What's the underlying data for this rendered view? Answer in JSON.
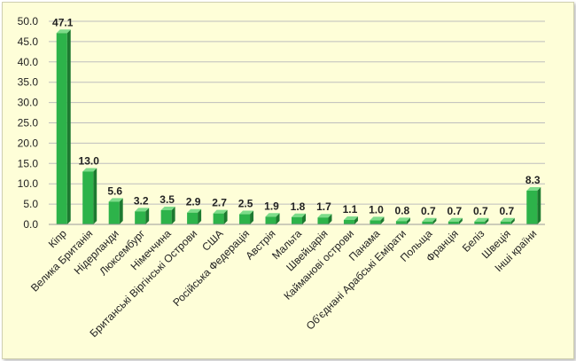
{
  "chart_data": {
    "type": "bar",
    "categories": [
      "Кіпр",
      "Велика Британія",
      "Нідерланди",
      "Люксембург",
      "Німеччина",
      "Британські Віргінські Острови",
      "США",
      "Російська Федерація",
      "Австрія",
      "Мальта",
      "Швейцарія",
      "Кайманові острови",
      "Панама",
      "Об'єднані Арабські Емірати",
      "Польща",
      "Франція",
      "Беліз",
      "Швеція",
      "Інші країни"
    ],
    "values": [
      47.1,
      13.0,
      5.6,
      3.2,
      3.5,
      2.9,
      2.7,
      2.5,
      1.9,
      1.8,
      1.7,
      1.1,
      1.0,
      0.8,
      0.7,
      0.7,
      0.7,
      0.7,
      8.3
    ],
    "value_labels": [
      "47.1",
      "13.0",
      "5.6",
      "3.2",
      "3.5",
      "2.9",
      "2.7",
      "2.5",
      "1.9",
      "1.8",
      "1.7",
      "1.1",
      "1.0",
      "0.8",
      "0.7",
      "0.7",
      "0.7",
      "0.7",
      "8.3"
    ],
    "y_ticks": [
      "0.0",
      "5.0",
      "10.0",
      "15.0",
      "20.0",
      "25.0",
      "30.0",
      "35.0",
      "40.0",
      "45.0",
      "50.0"
    ],
    "ylim": [
      0,
      50
    ],
    "grid": true,
    "legend": "none",
    "colors": {
      "bar": "#2db34a",
      "bar_side": "#1d7a30",
      "bar_top": "#7ddc8a",
      "background": "#fefed8",
      "grid": "#bdbdbd"
    }
  }
}
